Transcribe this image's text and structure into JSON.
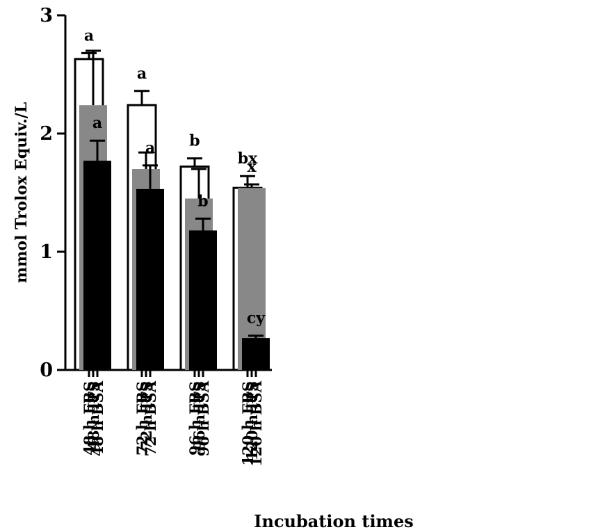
{
  "chart_data": {
    "type": "bar",
    "xlabel": "Incubation times",
    "ylabel": "mmol Trolox Equiv./L",
    "ylim": [
      0,
      3
    ],
    "yticks": [
      "0",
      "1",
      "2",
      "3"
    ],
    "grid": false,
    "colors": {
      "FBS": "#ffffff",
      "ITS": "#888888",
      "BSA": "#000000"
    },
    "bars": [
      {
        "label": "48 h FBS",
        "value": 2.63,
        "error": 0.05,
        "letter": "a"
      },
      {
        "label": "48 h ITS",
        "value": 2.24,
        "error": 0.46,
        "letter": ""
      },
      {
        "label": "48 h BSA",
        "value": 1.77,
        "error": 0.17,
        "letter": "a"
      },
      {
        "label": "72 h FBS",
        "value": 2.24,
        "error": 0.12,
        "letter": "a"
      },
      {
        "label": "72 h ITS",
        "value": 1.7,
        "error": 0.14,
        "letter": ""
      },
      {
        "label": "72 h BSA",
        "value": 1.53,
        "error": 0.2,
        "letter": "a"
      },
      {
        "label": "96 h FBS",
        "value": 1.72,
        "error": 0.07,
        "letter": "b"
      },
      {
        "label": "96 h ITS",
        "value": 1.45,
        "error": 0.25,
        "letter": ""
      },
      {
        "label": "96 h BSA",
        "value": 1.18,
        "error": 0.1,
        "letter": "b"
      },
      {
        "label": "120 h FBS",
        "value": 1.54,
        "error": 0.1,
        "letter": "bx"
      },
      {
        "label": "120 h ITS",
        "value": 1.54,
        "error": 0.03,
        "letter": "x"
      },
      {
        "label": "120 h BSA",
        "value": 0.27,
        "error": 0.02,
        "letter": "cy"
      }
    ]
  }
}
